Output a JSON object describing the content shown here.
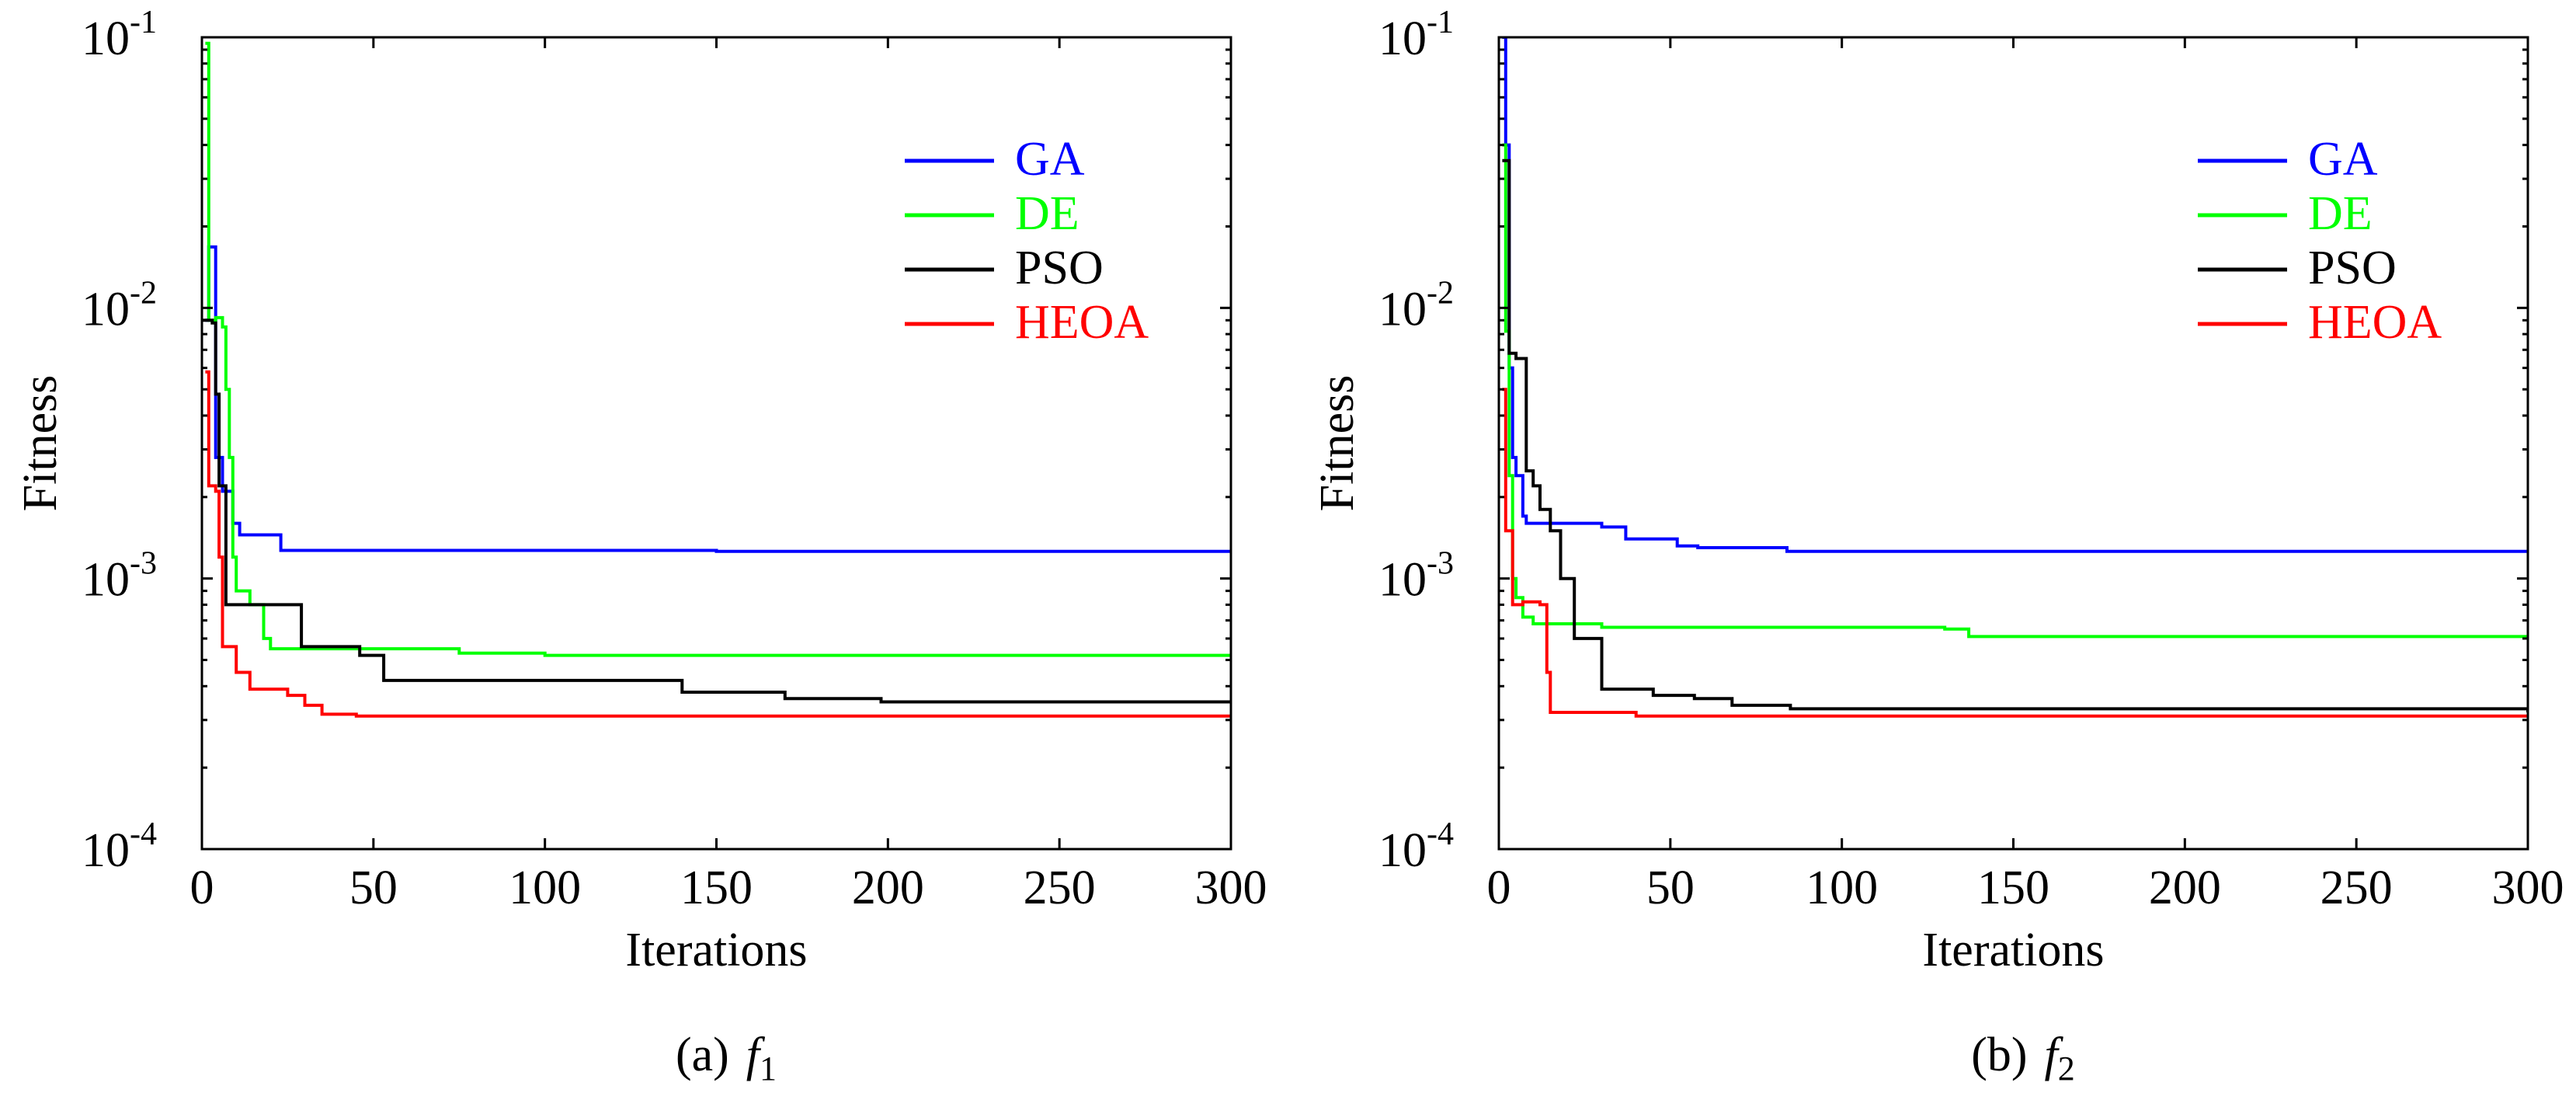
{
  "figure": {
    "colors": {
      "GA": "#0000ff",
      "DE": "#00ff00",
      "PSO": "#000000",
      "HEOA": "#ff0000"
    }
  },
  "chart_data": [
    {
      "type": "line",
      "caption_prefix": "(a)",
      "caption_symbol": "f",
      "caption_subscript": "1",
      "xlabel": "Iterations",
      "ylabel": "Fitness",
      "yscale": "log",
      "xlim": [
        0,
        300
      ],
      "ylim": [
        0.0001,
        0.1
      ],
      "xticks": [
        0,
        50,
        100,
        150,
        200,
        250,
        300
      ],
      "yticks": [
        {
          "value": 0.0001,
          "base": "10",
          "exp": "-4"
        },
        {
          "value": 0.001,
          "base": "10",
          "exp": "-3"
        },
        {
          "value": 0.01,
          "base": "10",
          "exp": "-2"
        },
        {
          "value": 0.1,
          "base": "10",
          "exp": "-1"
        }
      ],
      "legend_position": "top-right",
      "series": [
        {
          "name": "GA",
          "color": "#0000ff",
          "step": true,
          "points": [
            [
              1,
              0.009
            ],
            [
              2,
              0.0168
            ],
            [
              4,
              0.0028
            ],
            [
              6,
              0.0021
            ],
            [
              9,
              0.0016
            ],
            [
              11,
              0.00145
            ],
            [
              23,
              0.00127
            ],
            [
              150,
              0.00126
            ],
            [
              300,
              0.00125
            ]
          ]
        },
        {
          "name": "DE",
          "color": "#00ff00",
          "step": true,
          "points": [
            [
              1,
              0.095
            ],
            [
              2,
              0.009
            ],
            [
              4,
              0.0092
            ],
            [
              6,
              0.0085
            ],
            [
              7,
              0.005
            ],
            [
              8,
              0.0028
            ],
            [
              9,
              0.0012
            ],
            [
              10,
              0.0009
            ],
            [
              14,
              0.0008
            ],
            [
              18,
              0.0006
            ],
            [
              20,
              0.00055
            ],
            [
              75,
              0.00053
            ],
            [
              100,
              0.00052
            ],
            [
              300,
              0.00052
            ]
          ]
        },
        {
          "name": "PSO",
          "color": "#000000",
          "step": true,
          "points": [
            [
              0,
              0.009
            ],
            [
              3,
              0.0088
            ],
            [
              4,
              0.0048
            ],
            [
              5,
              0.0022
            ],
            [
              7,
              0.0008
            ],
            [
              29,
              0.00056
            ],
            [
              46,
              0.00052
            ],
            [
              53,
              0.00042
            ],
            [
              140,
              0.00038
            ],
            [
              170,
              0.00036
            ],
            [
              198,
              0.00035
            ],
            [
              300,
              0.00035
            ]
          ]
        },
        {
          "name": "HEOA",
          "color": "#ff0000",
          "step": true,
          "points": [
            [
              1,
              0.0058
            ],
            [
              2,
              0.0022
            ],
            [
              4,
              0.0021
            ],
            [
              5,
              0.0012
            ],
            [
              6,
              0.00056
            ],
            [
              10,
              0.00045
            ],
            [
              14,
              0.00039
            ],
            [
              25,
              0.00037
            ],
            [
              30,
              0.00034
            ],
            [
              35,
              0.000315
            ],
            [
              45,
              0.00031
            ],
            [
              300,
              0.00031
            ]
          ]
        }
      ]
    },
    {
      "type": "line",
      "caption_prefix": "(b)",
      "caption_symbol": "f",
      "caption_subscript": "2",
      "xlabel": "Iterations",
      "ylabel": "Fitness",
      "yscale": "log",
      "xlim": [
        0,
        300
      ],
      "ylim": [
        0.0001,
        0.1
      ],
      "xticks": [
        0,
        50,
        100,
        150,
        200,
        250,
        300
      ],
      "yticks": [
        {
          "value": 0.0001,
          "base": "10",
          "exp": "-4"
        },
        {
          "value": 0.001,
          "base": "10",
          "exp": "-3"
        },
        {
          "value": 0.01,
          "base": "10",
          "exp": "-2"
        },
        {
          "value": 0.1,
          "base": "10",
          "exp": "-1"
        }
      ],
      "legend_position": "top-right",
      "series": [
        {
          "name": "GA",
          "color": "#0000ff",
          "step": true,
          "points": [
            [
              1,
              0.1
            ],
            [
              2,
              0.04
            ],
            [
              3,
              0.006
            ],
            [
              4,
              0.0028
            ],
            [
              5,
              0.0024
            ],
            [
              7,
              0.0017
            ],
            [
              8,
              0.0016
            ],
            [
              30,
              0.00155
            ],
            [
              37,
              0.0014
            ],
            [
              52,
              0.00132
            ],
            [
              58,
              0.0013
            ],
            [
              84,
              0.00126
            ],
            [
              300,
              0.00125
            ]
          ]
        },
        {
          "name": "DE",
          "color": "#00ff00",
          "step": true,
          "points": [
            [
              1,
              0.04
            ],
            [
              2,
              0.0082
            ],
            [
              3,
              0.0024
            ],
            [
              4,
              0.001
            ],
            [
              5,
              0.00085
            ],
            [
              7,
              0.00072
            ],
            [
              10,
              0.00068
            ],
            [
              30,
              0.00066
            ],
            [
              130,
              0.00065
            ],
            [
              137,
              0.00061
            ],
            [
              300,
              0.0006
            ]
          ]
        },
        {
          "name": "PSO",
          "color": "#000000",
          "step": true,
          "points": [
            [
              1,
              0.035
            ],
            [
              3,
              0.0068
            ],
            [
              5,
              0.0065
            ],
            [
              8,
              0.0025
            ],
            [
              10,
              0.0022
            ],
            [
              12,
              0.0018
            ],
            [
              15,
              0.0015
            ],
            [
              18,
              0.001
            ],
            [
              22,
              0.0006
            ],
            [
              30,
              0.00039
            ],
            [
              45,
              0.00037
            ],
            [
              57,
              0.00036
            ],
            [
              68,
              0.00034
            ],
            [
              85,
              0.00033
            ],
            [
              238,
              0.00033
            ],
            [
              300,
              0.00032
            ]
          ]
        },
        {
          "name": "HEOA",
          "color": "#ff0000",
          "step": true,
          "points": [
            [
              1,
              0.005
            ],
            [
              2,
              0.0015
            ],
            [
              4,
              0.0008
            ],
            [
              7,
              0.00082
            ],
            [
              12,
              0.0008
            ],
            [
              14,
              0.00045
            ],
            [
              15,
              0.00032
            ],
            [
              40,
              0.00031
            ],
            [
              300,
              0.00031
            ]
          ]
        }
      ]
    }
  ]
}
